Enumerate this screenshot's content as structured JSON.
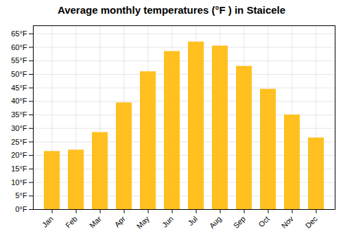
{
  "chart_data": {
    "type": "bar",
    "title": "Average monthly temperatures (°F ) in Staicele",
    "categories": [
      "Jan",
      "Feb",
      "Mar",
      "Apr",
      "May",
      "Jun",
      "Jul",
      "Aug",
      "Sep",
      "Oct",
      "Nov",
      "Dec"
    ],
    "values": [
      21.5,
      22.0,
      28.5,
      39.5,
      51.0,
      58.5,
      62.0,
      60.5,
      53.0,
      44.5,
      35.0,
      26.5
    ],
    "color": "#FFC020",
    "ylim": [
      0,
      68
    ],
    "yticks": [
      {
        "value": 0,
        "label": "0°F"
      },
      {
        "value": 5,
        "label": "5°F"
      },
      {
        "value": 10,
        "label": "10°F"
      },
      {
        "value": 15,
        "label": "15°F"
      },
      {
        "value": 20,
        "label": "20°F"
      },
      {
        "value": 25,
        "label": "25°F"
      },
      {
        "value": 30,
        "label": "30°F"
      },
      {
        "value": 35,
        "label": "35°F"
      },
      {
        "value": 40,
        "label": "40°F"
      },
      {
        "value": 45,
        "label": "45°F"
      },
      {
        "value": 50,
        "label": "50°F"
      },
      {
        "value": 55,
        "label": "55°F"
      },
      {
        "value": 60,
        "label": "60°F"
      },
      {
        "value": 65,
        "label": "65°F"
      }
    ],
    "grid": true
  }
}
